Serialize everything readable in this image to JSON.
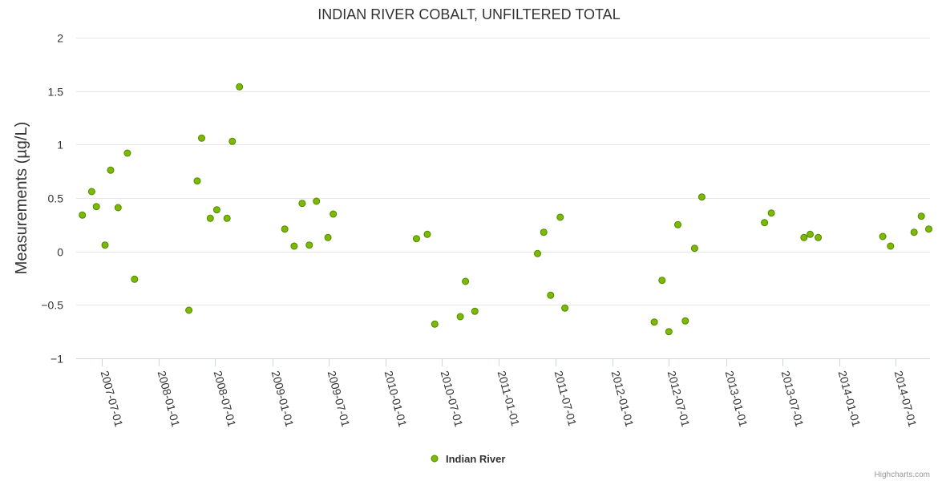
{
  "colors": {
    "series": "#7cb900",
    "series_stroke": "#4f8a00"
  },
  "chart_data": {
    "type": "scatter",
    "title": "INDIAN RIVER COBALT, UNFILTERED TOTAL",
    "xlabel": "",
    "ylabel": "Measurements (µg/L)",
    "ylim": [
      -1,
      2
    ],
    "yticks": [
      -1,
      -0.5,
      0,
      0.5,
      1,
      1.5,
      2
    ],
    "ytick_labels": [
      "−1",
      "−0.5",
      "0",
      "0.5",
      "1",
      "1.5",
      "2"
    ],
    "xlim": [
      "2007-04-10",
      "2014-10-20"
    ],
    "xticks": [
      "2007-07-01",
      "2008-01-01",
      "2008-07-01",
      "2009-01-01",
      "2009-07-01",
      "2010-01-01",
      "2010-07-01",
      "2011-01-01",
      "2011-07-01",
      "2012-01-01",
      "2012-07-01",
      "2013-01-01",
      "2013-07-01",
      "2014-01-01",
      "2014-07-01"
    ],
    "legend": {
      "position": "bottom-center"
    },
    "credits": "Highcharts.com",
    "series": [
      {
        "name": "Indian River",
        "points": [
          {
            "x": "2007-04-30",
            "y": 0.34
          },
          {
            "x": "2007-05-30",
            "y": 0.56
          },
          {
            "x": "2007-06-14",
            "y": 0.42
          },
          {
            "x": "2007-07-12",
            "y": 0.06
          },
          {
            "x": "2007-07-30",
            "y": 0.76
          },
          {
            "x": "2007-08-23",
            "y": 0.41
          },
          {
            "x": "2007-09-22",
            "y": 0.92
          },
          {
            "x": "2007-10-15",
            "y": -0.26
          },
          {
            "x": "2008-04-07",
            "y": -0.55
          },
          {
            "x": "2008-05-04",
            "y": 0.66
          },
          {
            "x": "2008-05-18",
            "y": 1.06
          },
          {
            "x": "2008-06-15",
            "y": 0.31
          },
          {
            "x": "2008-07-06",
            "y": 0.39
          },
          {
            "x": "2008-08-08",
            "y": 0.31
          },
          {
            "x": "2008-08-25",
            "y": 1.03
          },
          {
            "x": "2008-09-17",
            "y": 1.54
          },
          {
            "x": "2009-02-10",
            "y": 0.21
          },
          {
            "x": "2009-03-12",
            "y": 0.05
          },
          {
            "x": "2009-04-07",
            "y": 0.45
          },
          {
            "x": "2009-04-30",
            "y": 0.06
          },
          {
            "x": "2009-05-23",
            "y": 0.47
          },
          {
            "x": "2009-06-29",
            "y": 0.13
          },
          {
            "x": "2009-07-16",
            "y": 0.35
          },
          {
            "x": "2010-04-10",
            "y": 0.12
          },
          {
            "x": "2010-05-15",
            "y": 0.16
          },
          {
            "x": "2010-06-08",
            "y": -0.68
          },
          {
            "x": "2010-08-29",
            "y": -0.61
          },
          {
            "x": "2010-09-15",
            "y": -0.28
          },
          {
            "x": "2010-10-15",
            "y": -0.56
          },
          {
            "x": "2011-05-05",
            "y": -0.02
          },
          {
            "x": "2011-05-25",
            "y": 0.18
          },
          {
            "x": "2011-06-16",
            "y": -0.41
          },
          {
            "x": "2011-07-17",
            "y": 0.32
          },
          {
            "x": "2011-08-01",
            "y": -0.53
          },
          {
            "x": "2012-05-15",
            "y": -0.66
          },
          {
            "x": "2012-06-09",
            "y": -0.27
          },
          {
            "x": "2012-07-01",
            "y": -0.75
          },
          {
            "x": "2012-07-30",
            "y": 0.25
          },
          {
            "x": "2012-08-23",
            "y": -0.65
          },
          {
            "x": "2012-09-22",
            "y": 0.03
          },
          {
            "x": "2012-10-15",
            "y": 0.51
          },
          {
            "x": "2013-05-05",
            "y": 0.27
          },
          {
            "x": "2013-05-27",
            "y": 0.36
          },
          {
            "x": "2013-09-09",
            "y": 0.13
          },
          {
            "x": "2013-09-29",
            "y": 0.16
          },
          {
            "x": "2013-10-25",
            "y": 0.13
          },
          {
            "x": "2014-05-21",
            "y": 0.14
          },
          {
            "x": "2014-06-15",
            "y": 0.05
          },
          {
            "x": "2014-08-30",
            "y": 0.18
          },
          {
            "x": "2014-09-22",
            "y": 0.33
          },
          {
            "x": "2014-10-16",
            "y": 0.21
          }
        ]
      }
    ]
  }
}
